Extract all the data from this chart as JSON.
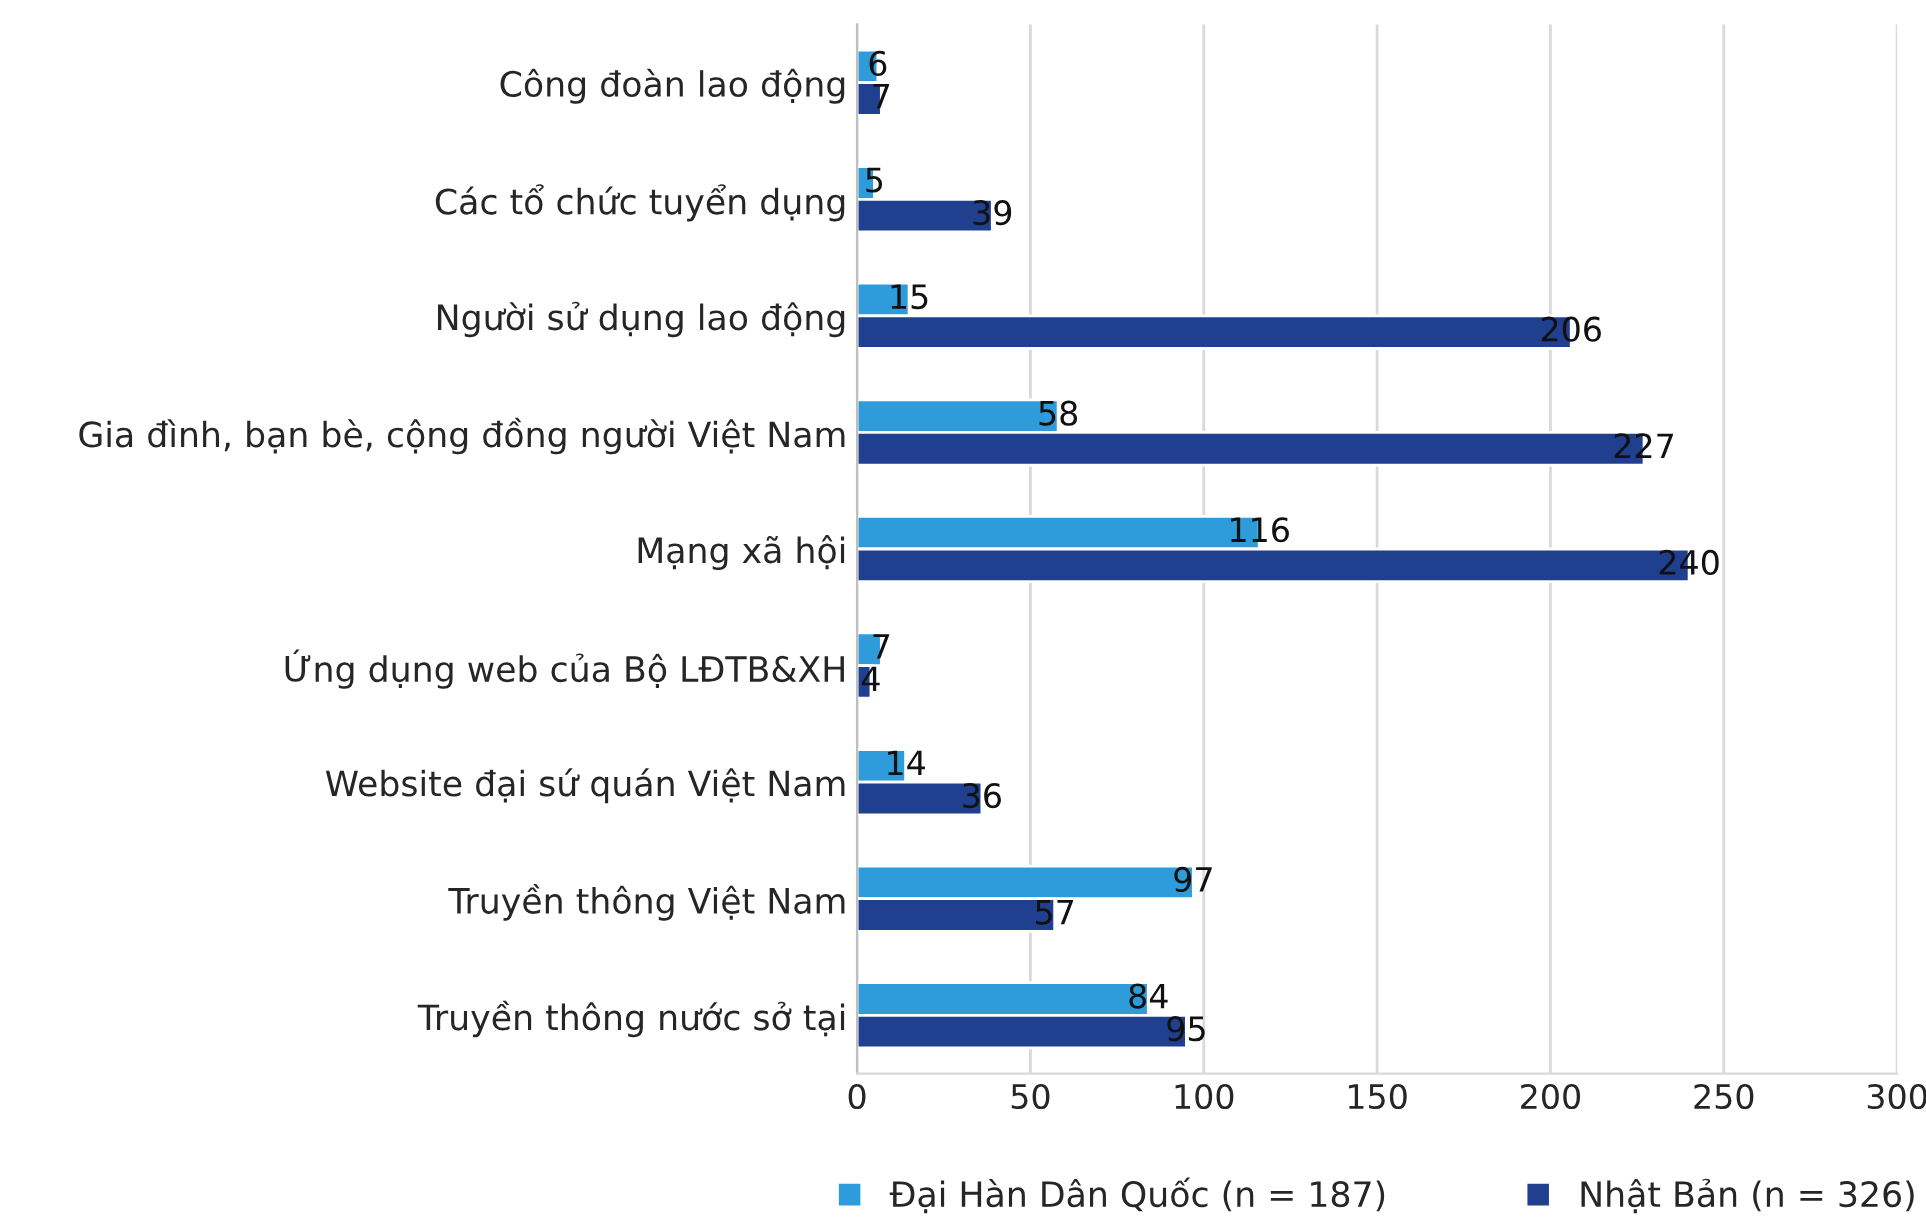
{
  "chart_data": {
    "type": "bar",
    "orientation": "horizontal",
    "categories": [
      "Công đoàn lao động",
      "Các tổ chức tuyển dụng",
      "Người sử dụng lao động",
      "Gia đình, bạn bè, cộng đồng người Việt Nam",
      "Mạng xã hội",
      "Ứng dụng web của Bộ LĐTB&XH",
      "Website đại sứ quán Việt Nam",
      "Truyền thông Việt Nam",
      "Truyền thông nước sở tại"
    ],
    "series": [
      {
        "name": "Đại Hàn Dân Quốc (n = 187)",
        "color": "#2e9cdb",
        "values": [
          6,
          5,
          15,
          58,
          116,
          7,
          14,
          97,
          84
        ]
      },
      {
        "name": "Nhật Bản (n = 326)",
        "color": "#213f8f",
        "values": [
          7,
          39,
          206,
          227,
          240,
          4,
          36,
          57,
          95
        ]
      }
    ],
    "xlim": [
      0,
      300
    ],
    "xticks": [
      0,
      50,
      100,
      150,
      200,
      250,
      300
    ],
    "grid": "x",
    "legend": "bottom",
    "data_labels": true
  }
}
